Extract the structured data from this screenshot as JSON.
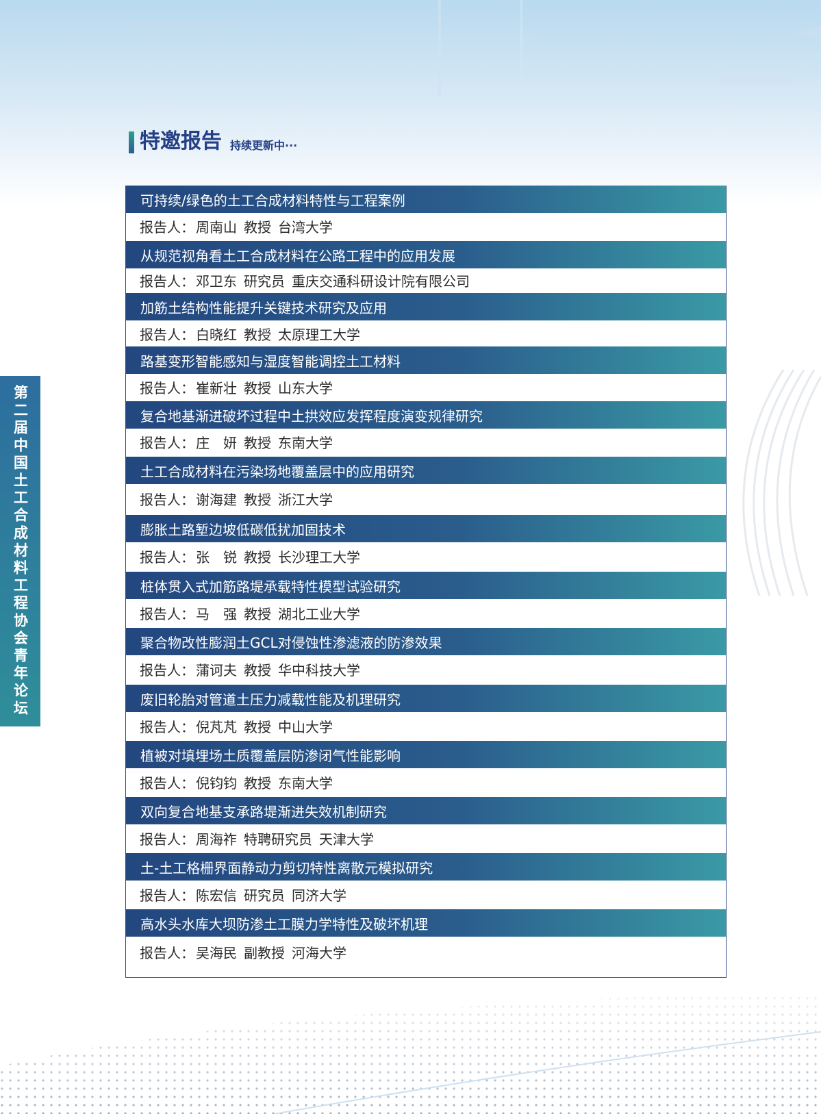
{
  "side_title": "第二届中国土工合成材料工程协会青年论坛",
  "header": {
    "title": "特邀报告",
    "subtitle": "持续更新中···"
  },
  "speaker_label": "报告人：",
  "reports": [
    {
      "title": "可持续/绿色的土工合成材料特性与工程案例",
      "name": "周南山",
      "position": "教授",
      "org": "台湾大学"
    },
    {
      "title": "从规范视角看土工合成材料在公路工程中的应用发展",
      "name": "邓卫东",
      "position": "研究员",
      "org": "重庆交通科研设计院有限公司"
    },
    {
      "title": "加筋土结构性能提升关键技术研究及应用",
      "name": "白晓红",
      "position": "教授",
      "org": "太原理工大学"
    },
    {
      "title": "路基变形智能感知与湿度智能调控土工材料",
      "name": "崔新壮",
      "position": "教授",
      "org": "山东大学"
    },
    {
      "title": "复合地基渐进破坏过程中土拱效应发挥程度演变规律研究",
      "name": "庄　妍",
      "position": "教授",
      "org": "东南大学"
    },
    {
      "title": "土工合成材料在污染场地覆盖层中的应用研究",
      "name": "谢海建",
      "position": "教授",
      "org": "浙江大学"
    },
    {
      "title": "膨胀土路堑边坡低碳低扰加固技术",
      "name": "张　锐",
      "position": "教授",
      "org": "长沙理工大学"
    },
    {
      "title": "桩体贯入式加筋路堤承载特性模型试验研究",
      "name": "马　强",
      "position": "教授",
      "org": "湖北工业大学"
    },
    {
      "title": "聚合物改性膨润土GCL对侵蚀性渗滤液的防渗效果",
      "name": "蒲诃夫",
      "position": "教授",
      "org": "华中科技大学"
    },
    {
      "title": "废旧轮胎对管道土压力减载性能及机理研究",
      "name": "倪芃芃",
      "position": "教授",
      "org": "中山大学"
    },
    {
      "title": "植被对填埋场土质覆盖层防渗闭气性能影响",
      "name": "倪钧钧",
      "position": "教授",
      "org": "东南大学"
    },
    {
      "title": "双向复合地基支承路堤渐进失效机制研究",
      "name": "周海祚",
      "position": "特聘研究员",
      "org": "天津大学"
    },
    {
      "title": "土-土工格栅界面静动力剪切特性离散元模拟研究",
      "name": "陈宏信",
      "position": "研究员",
      "org": "同济大学"
    },
    {
      "title": "高水头水库大坝防渗土工膜力学特性及破坏机理",
      "name": "吴海民",
      "position": "副教授",
      "org": "河海大学"
    }
  ]
}
